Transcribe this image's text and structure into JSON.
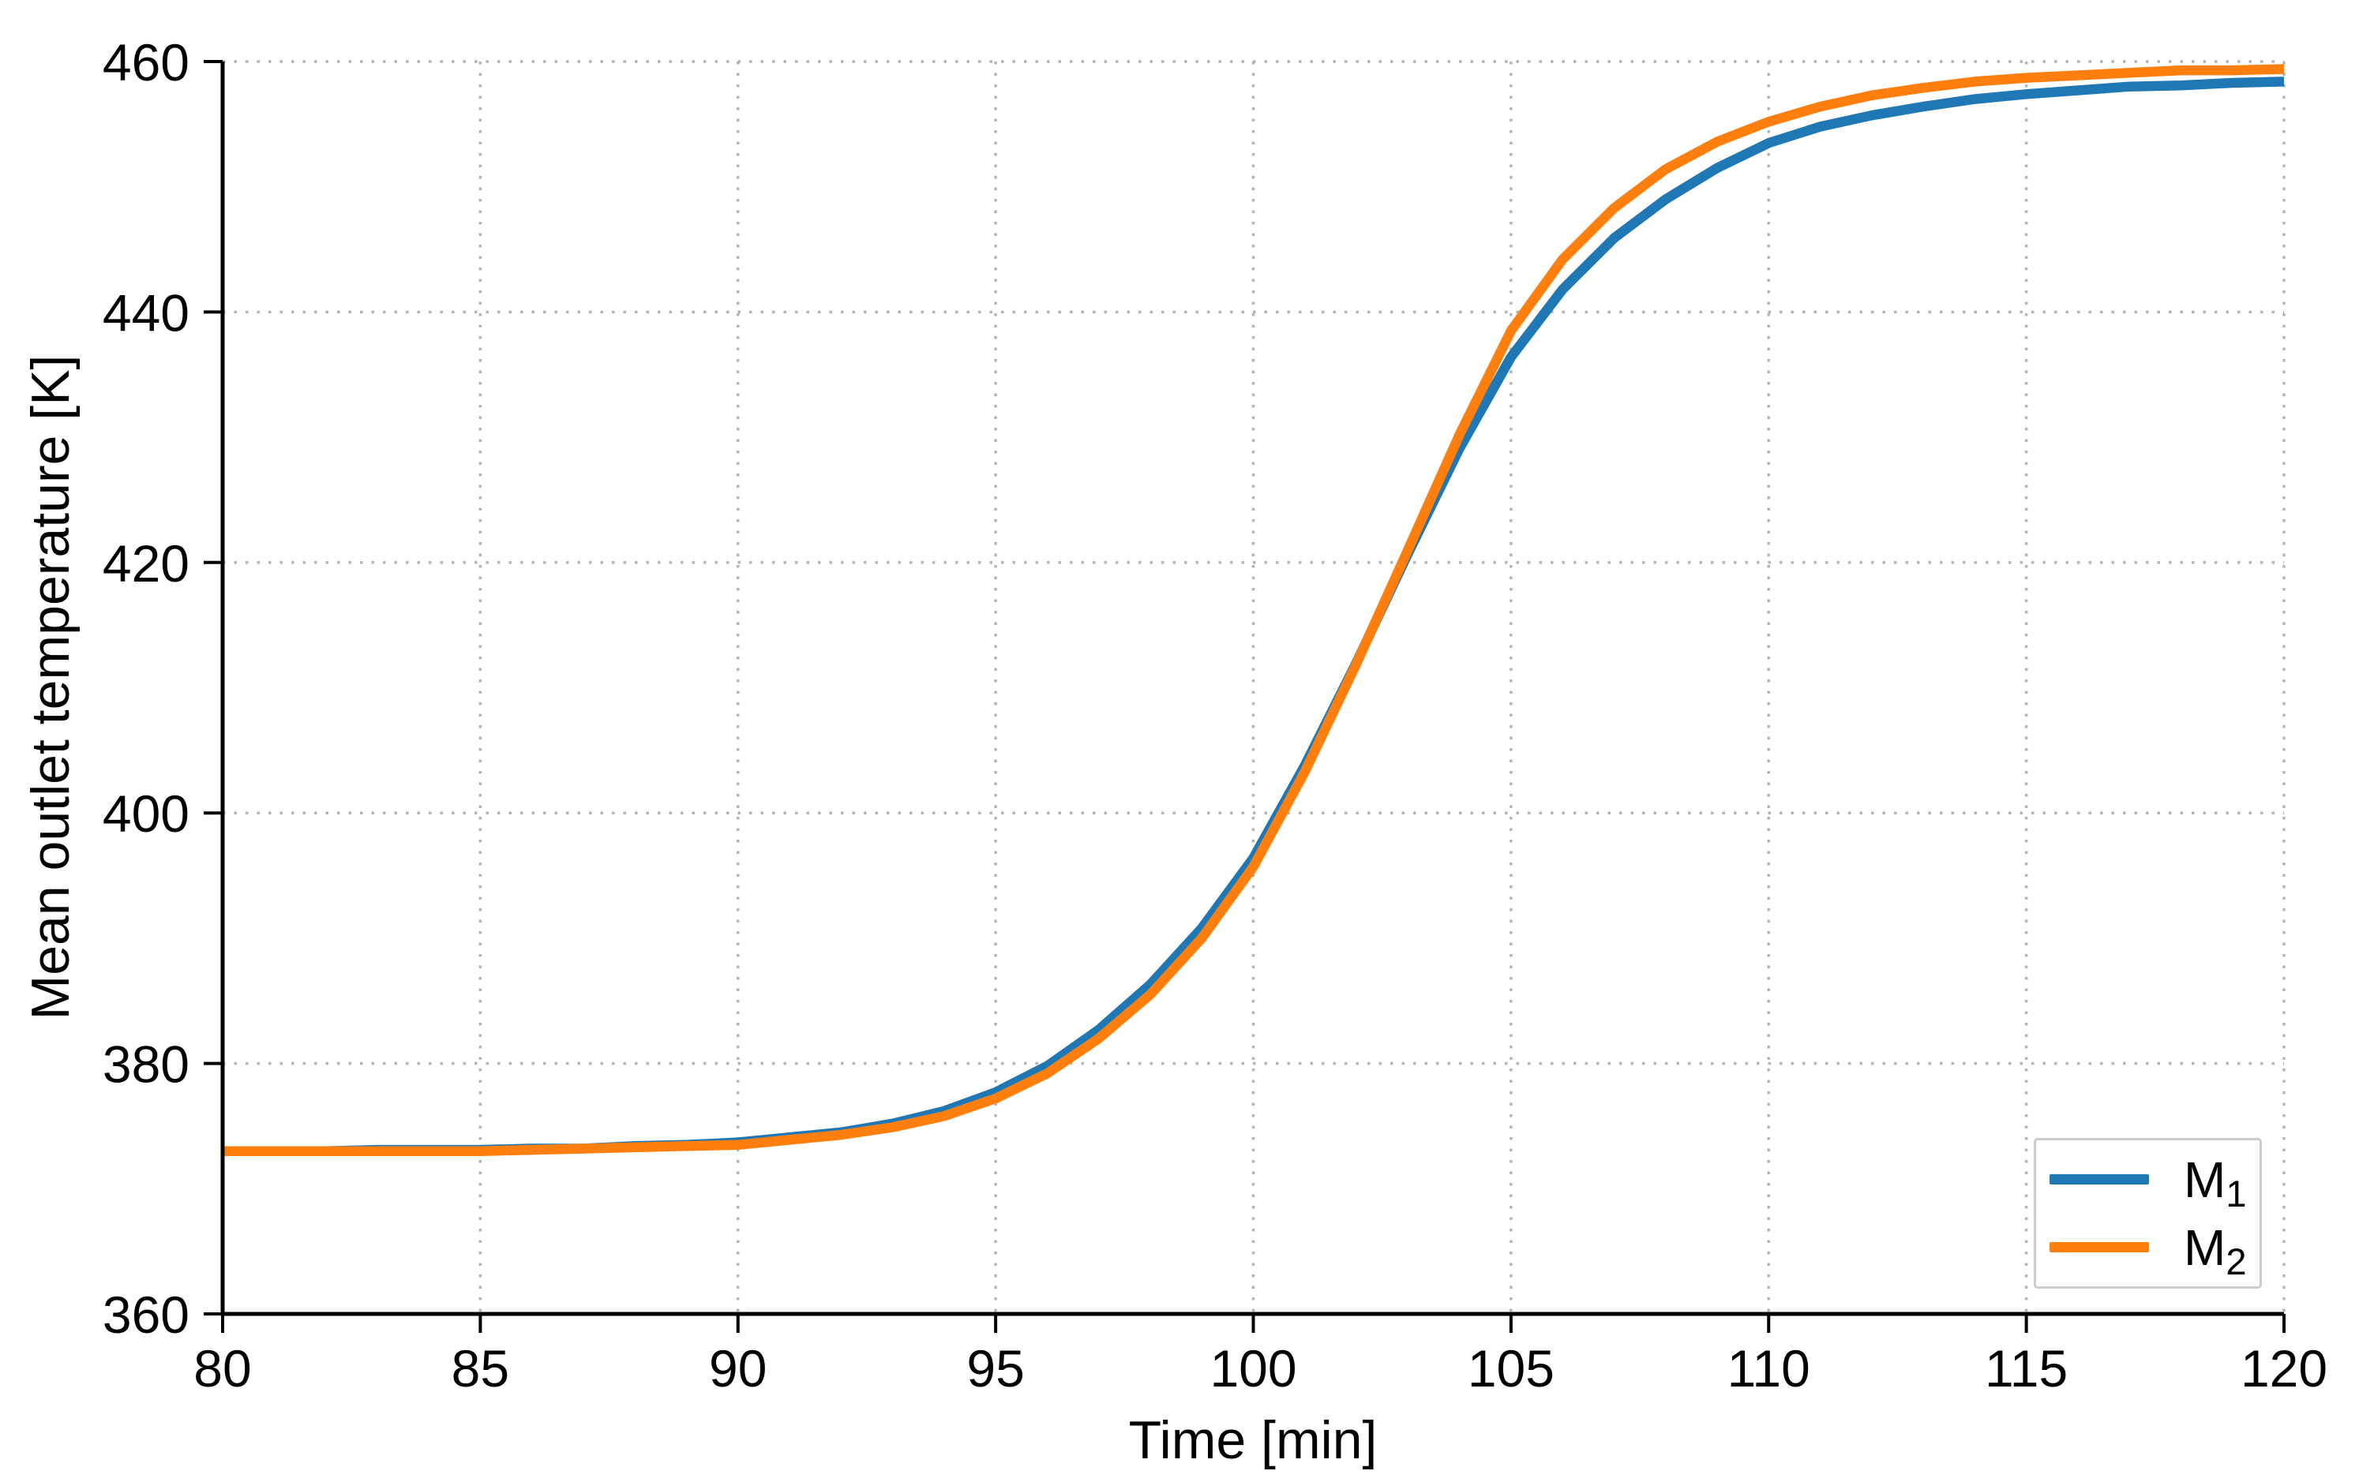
{
  "chart_data": {
    "type": "line",
    "title": "",
    "xlabel": "Time [min]",
    "ylabel": "Mean outlet temperature [K]",
    "xlim": [
      80,
      120
    ],
    "ylim": [
      360,
      460
    ],
    "x_ticks": [
      80,
      85,
      90,
      95,
      100,
      105,
      110,
      115,
      120
    ],
    "y_ticks": [
      360,
      380,
      400,
      420,
      440,
      460
    ],
    "grid": "dotted",
    "legend_position": "lower right",
    "x": [
      80,
      81,
      82,
      83,
      84,
      85,
      86,
      87,
      88,
      89,
      90,
      91,
      92,
      93,
      94,
      95,
      96,
      97,
      98,
      99,
      100,
      101,
      102,
      103,
      104,
      105,
      106,
      107,
      108,
      109,
      110,
      111,
      112,
      113,
      114,
      115,
      116,
      117,
      118,
      119,
      120
    ],
    "series": [
      {
        "name": "M1",
        "label_base": "M",
        "label_sub": "1",
        "color": "#1f77b4",
        "values": [
          373.0,
          373.0,
          373.0,
          373.1,
          373.1,
          373.1,
          373.2,
          373.2,
          373.4,
          373.5,
          373.7,
          374.1,
          374.5,
          375.2,
          376.2,
          377.7,
          379.8,
          382.7,
          386.3,
          390.8,
          396.4,
          403.8,
          412.0,
          420.7,
          429.1,
          436.4,
          441.8,
          445.9,
          449.0,
          451.5,
          453.5,
          454.8,
          455.7,
          456.4,
          457.0,
          457.4,
          457.7,
          458.0,
          458.1,
          458.3,
          458.4
        ]
      },
      {
        "name": "M2",
        "label_base": "M",
        "label_sub": "2",
        "color": "#ff7f0e",
        "values": [
          373.0,
          373.0,
          373.0,
          373.0,
          373.0,
          373.0,
          373.1,
          373.2,
          373.3,
          373.4,
          373.5,
          373.9,
          374.3,
          374.9,
          375.8,
          377.2,
          379.2,
          382.0,
          385.5,
          390.0,
          395.7,
          403.3,
          411.9,
          421.0,
          430.2,
          438.5,
          444.2,
          448.3,
          451.4,
          453.6,
          455.2,
          456.4,
          457.3,
          457.9,
          458.4,
          458.7,
          458.9,
          459.1,
          459.3,
          459.3,
          459.4
        ]
      }
    ]
  }
}
